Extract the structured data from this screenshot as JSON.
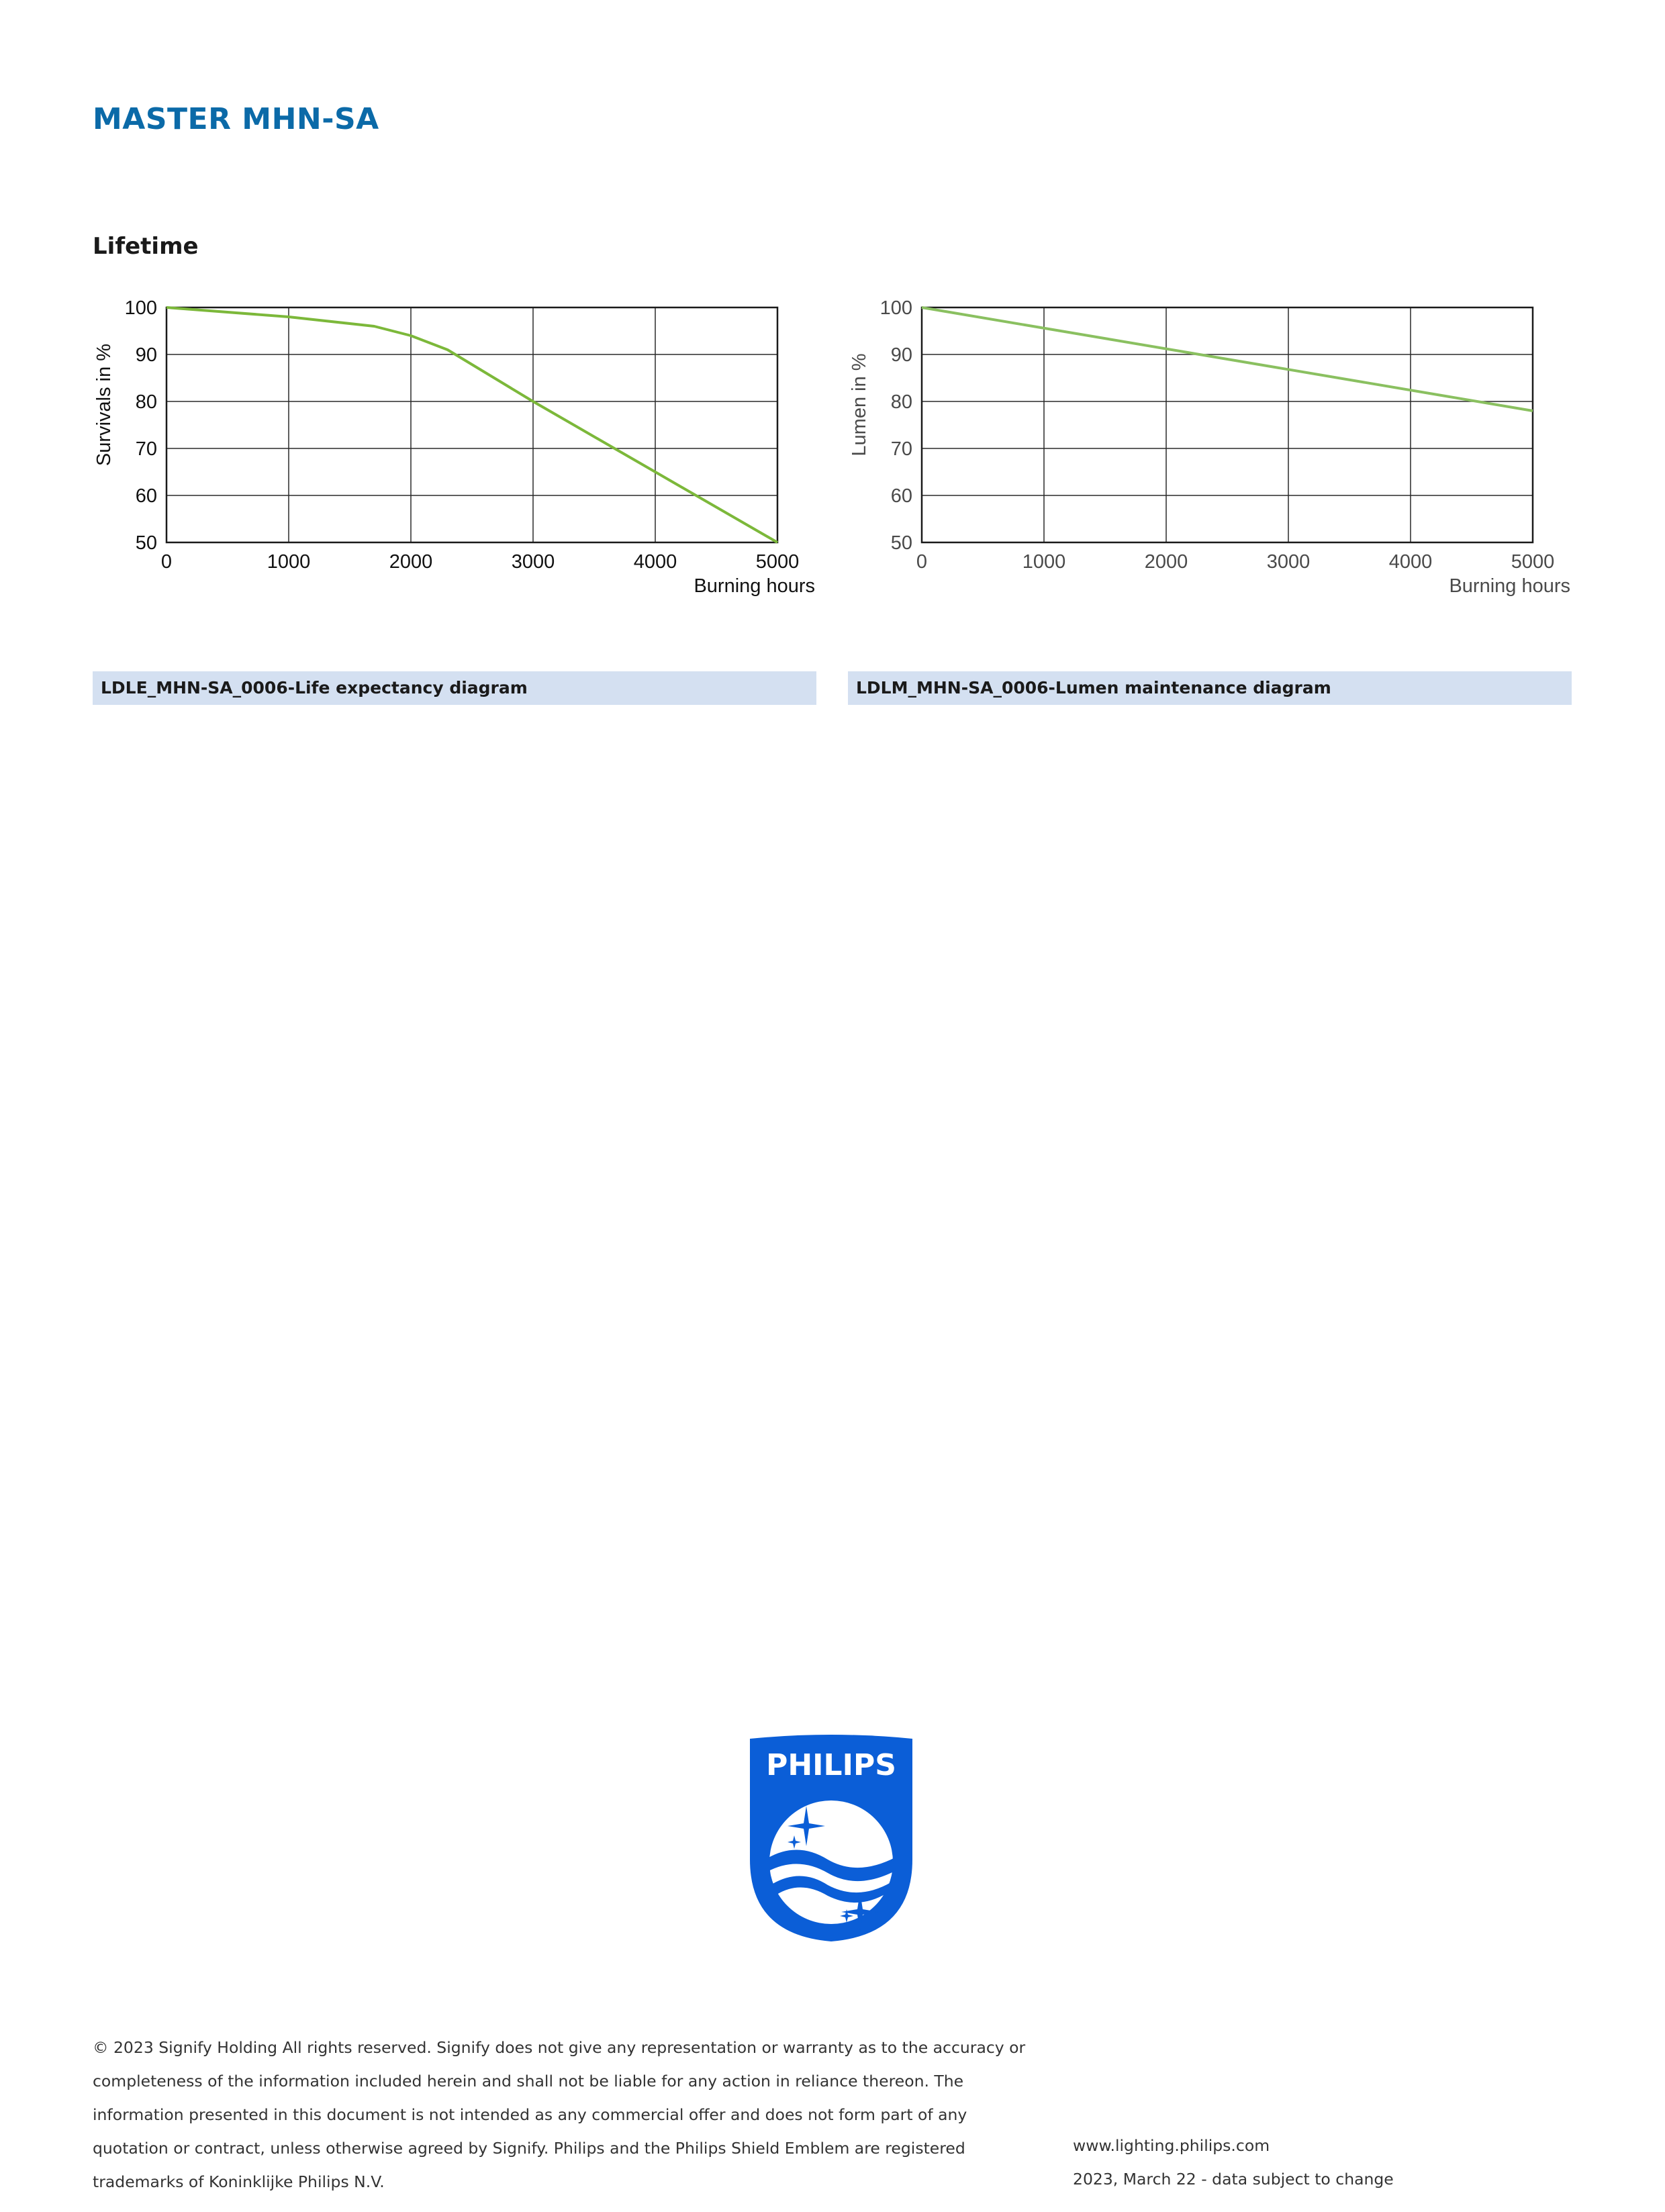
{
  "header": {
    "product_title": "MASTER MHN-SA"
  },
  "section": {
    "title": "Lifetime"
  },
  "chart_data": [
    {
      "type": "line",
      "ylabel": "Survivals in %",
      "xlabel": "Burning hours",
      "xlim": [
        0,
        5000
      ],
      "ylim": [
        50,
        100
      ],
      "x_ticks": [
        "0",
        "1000",
        "2000",
        "3000",
        "4000",
        "5000"
      ],
      "y_ticks": [
        "100",
        "90",
        "80",
        "70",
        "60",
        "50"
      ],
      "grid": true,
      "line_color": "#7cb83a",
      "series": [
        {
          "x": [
            0,
            1000,
            1700,
            2000,
            2300,
            3000,
            4000,
            5000
          ],
          "values": [
            100,
            98,
            96,
            94,
            91,
            80,
            65,
            50
          ]
        }
      ],
      "caption": "LDLE_MHN-SA_0006-Life expectancy diagram"
    },
    {
      "type": "line",
      "ylabel": "Lumen in %",
      "xlabel": "Burning hours",
      "xlim": [
        0,
        5000
      ],
      "ylim": [
        50,
        100
      ],
      "x_ticks": [
        "0",
        "1000",
        "2000",
        "3000",
        "4000",
        "5000"
      ],
      "y_ticks": [
        "100",
        "90",
        "80",
        "70",
        "60",
        "50"
      ],
      "grid": true,
      "line_color": "#8ac060",
      "series": [
        {
          "x": [
            0,
            5000
          ],
          "values": [
            100,
            78
          ]
        }
      ],
      "caption": "LDLM_MHN-SA_0006-Lumen maintenance diagram"
    }
  ],
  "logo": {
    "wordmark": "PHILIPS",
    "color": "#0b5ed7"
  },
  "footer": {
    "disclaimer_lines": [
      "© 2023 Signify Holding All rights reserved. Signify does not give any representation or warranty as to the accuracy or",
      "completeness of the information included herein and shall not be liable for any action in reliance thereon. The",
      "information presented in this document is not intended as any commercial offer and does not form part of any",
      "quotation or contract, unless otherwise agreed by Signify. Philips and the Philips Shield Emblem are registered",
      "trademarks of Koninklijke Philips N.V."
    ],
    "website": "www.lighting.philips.com",
    "date_note": "2023, March 22 - data subject to change"
  }
}
